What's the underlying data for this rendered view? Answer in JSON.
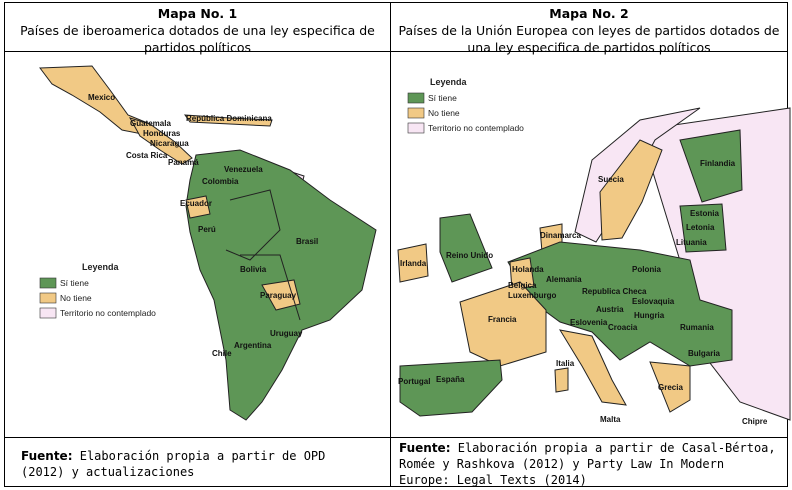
{
  "maps": [
    {
      "title": "Mapa No. 1",
      "subtitle": "Países de iberoamerica dotados de una ley especifica de partidos políticos",
      "legend": {
        "title": "Leyenda",
        "items": [
          {
            "label": "Sí tiene",
            "color": "#5e9656"
          },
          {
            "label": "No tiene",
            "color": "#f1c985"
          },
          {
            "label": "Territorio no contemplado",
            "color": "#f8e6f4"
          }
        ]
      },
      "labels": [
        "Mexico",
        "Guatemala",
        "Honduras",
        "Nicaragua",
        "Costa Rica",
        "Panamá",
        "República Dominicana",
        "Venezuela",
        "Colombia",
        "Ecuador",
        "Perú",
        "Brasil",
        "Bolivia",
        "Paraguay",
        "Uruguay",
        "Argentina",
        "Chile"
      ],
      "source": {
        "label": "Fuente:",
        "text": "Elaboración propia a partir de OPD (2012) y actualizaciones"
      }
    },
    {
      "title": "Mapa No. 2",
      "subtitle": "Países de la Unión Europea con leyes de partidos dotados de una ley especifica de partidos políticos",
      "legend": {
        "title": "Leyenda",
        "items": [
          {
            "label": "Sí tiene",
            "color": "#5e9656"
          },
          {
            "label": "No tiene",
            "color": "#f1c985"
          },
          {
            "label": "Territorio no contemplado",
            "color": "#f8e6f4"
          }
        ]
      },
      "labels": [
        "Finlandia",
        "Suecia",
        "Estonia",
        "Letonia",
        "Lituania",
        "Dinamarca",
        "Reino Unido",
        "Irlanda",
        "Holanda",
        "Alemania",
        "Polonia",
        "Belgica",
        "Luxemburgo",
        "Republica Checa",
        "Eslovaquia",
        "Austria",
        "Hungria",
        "Francia",
        "Eslovenia",
        "Croacia",
        "Rumania",
        "Bulgaria",
        "Portugal",
        "España",
        "Italia",
        "Grecia",
        "Malta",
        "Chipre"
      ],
      "source": {
        "label": "Fuente:",
        "text": "Elaboración propia a partir de Casal-Bértoa, Romée y Rashkova (2012) y Party Law In Modern Europe: Legal Texts (2014)"
      }
    }
  ]
}
